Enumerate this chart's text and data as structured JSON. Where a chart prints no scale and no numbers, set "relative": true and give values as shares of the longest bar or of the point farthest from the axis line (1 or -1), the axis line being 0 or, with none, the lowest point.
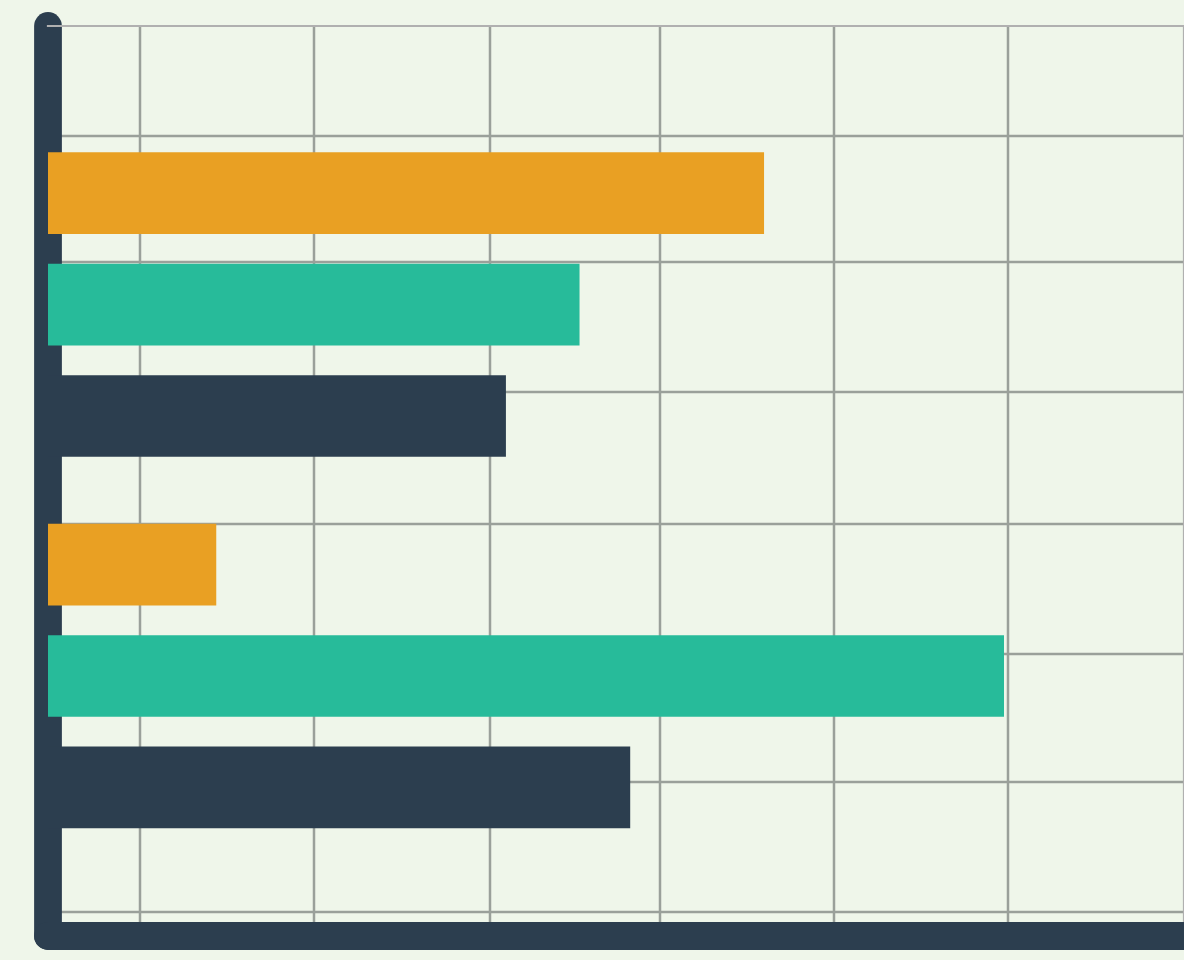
{
  "chart_data": {
    "type": "bar",
    "orientation": "horizontal",
    "relative": true,
    "grid": true,
    "categories": [
      null,
      null
    ],
    "series": [
      {
        "color": "#e9a023",
        "values": [
          0.749,
          0.176
        ]
      },
      {
        "color": "#27bb9a",
        "values": [
          0.556,
          1
        ]
      },
      {
        "color": "#2c3e4f",
        "values": [
          0.479,
          0.609
        ]
      }
    ]
  }
}
